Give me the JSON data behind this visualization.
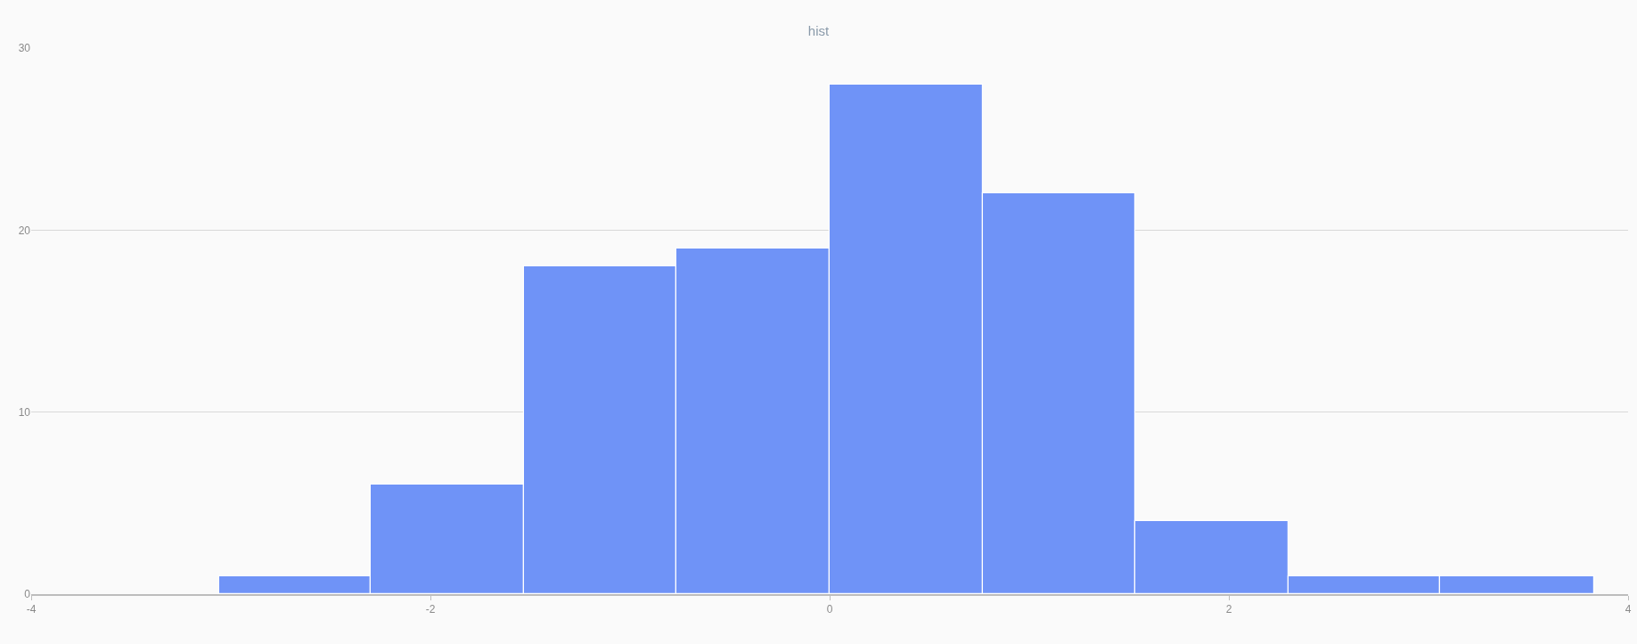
{
  "chart_data": {
    "type": "histogram",
    "title": "hist",
    "bins": [
      -3.06,
      -2.3,
      -1.53,
      -0.77,
      0,
      0.77,
      1.53,
      2.3,
      3.06,
      3.83
    ],
    "values": [
      1,
      6,
      18,
      19,
      28,
      22,
      4,
      1,
      1
    ],
    "color": "#6f93f7",
    "xlim": [
      -4,
      4
    ],
    "xticks": [
      -4,
      -2,
      0,
      2,
      4
    ],
    "ylim": [
      0,
      30
    ],
    "yticks": [
      0,
      10,
      20,
      30
    ],
    "grid": "y"
  }
}
